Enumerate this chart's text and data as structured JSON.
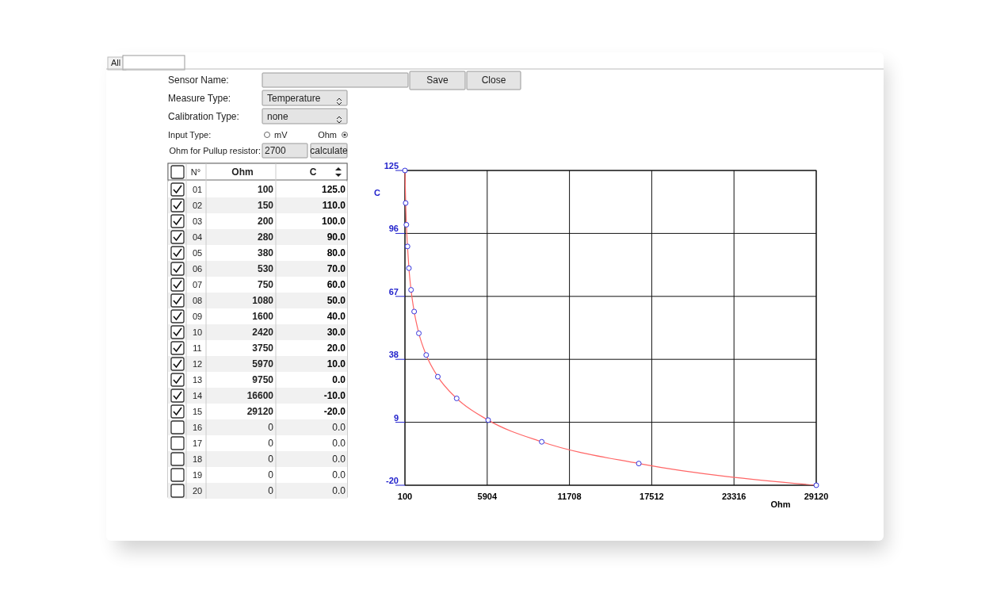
{
  "chart_data": {
    "type": "line",
    "xlabel": "Ohm",
    "ylabel": "C",
    "x": [
      100,
      150,
      200,
      280,
      380,
      530,
      750,
      1080,
      1600,
      2420,
      3750,
      5970,
      9750,
      16600,
      29120
    ],
    "series": [
      {
        "color": "#ff6666",
        "values": [
          125,
          110,
          100,
          90,
          80,
          70,
          60,
          50,
          40,
          30,
          20,
          10,
          0,
          -10,
          -20
        ]
      }
    ],
    "value_labels": [
      "125.0",
      "110.0",
      "100.0",
      "90.0",
      "80.0",
      "70.0",
      "60.0",
      "50.0",
      "40.0",
      "30.0",
      "20.0",
      "10.0",
      "0.0",
      "-10.0",
      "-20.0"
    ],
    "xlim": [
      100,
      29120
    ],
    "xticks": [
      100,
      5904,
      11708,
      17512,
      23316,
      29120
    ],
    "ylim": [
      -20,
      125
    ],
    "yticks": [
      -20,
      9,
      38,
      67,
      96,
      125
    ],
    "grid": true,
    "marker": "circle",
    "annotations": [
      "All",
      "Sensor Name:",
      "Save",
      "Close",
      "Measure Type:",
      "Temperature",
      "Calibration Type:",
      "none",
      "Input Type:",
      "mV",
      "Ohm",
      "Ohm for Pullup resistor:",
      "2700",
      "calculate",
      "N°",
      "Ohm",
      "C",
      "01",
      "02",
      "03",
      "04",
      "05",
      "06",
      "07",
      "08",
      "09",
      "10",
      "11",
      "12",
      "13",
      "14",
      "15",
      "16",
      "17",
      "18",
      "19",
      "20",
      "0",
      "0.0",
      "0",
      "0.0",
      "0",
      "0.0",
      "0",
      "0.0",
      "0",
      "0.0",
      "100",
      "150",
      "200",
      "280",
      "380",
      "530",
      "750",
      "1080",
      "1600",
      "2420",
      "3750",
      "5970",
      "9750",
      "16600",
      "29120"
    ]
  }
}
